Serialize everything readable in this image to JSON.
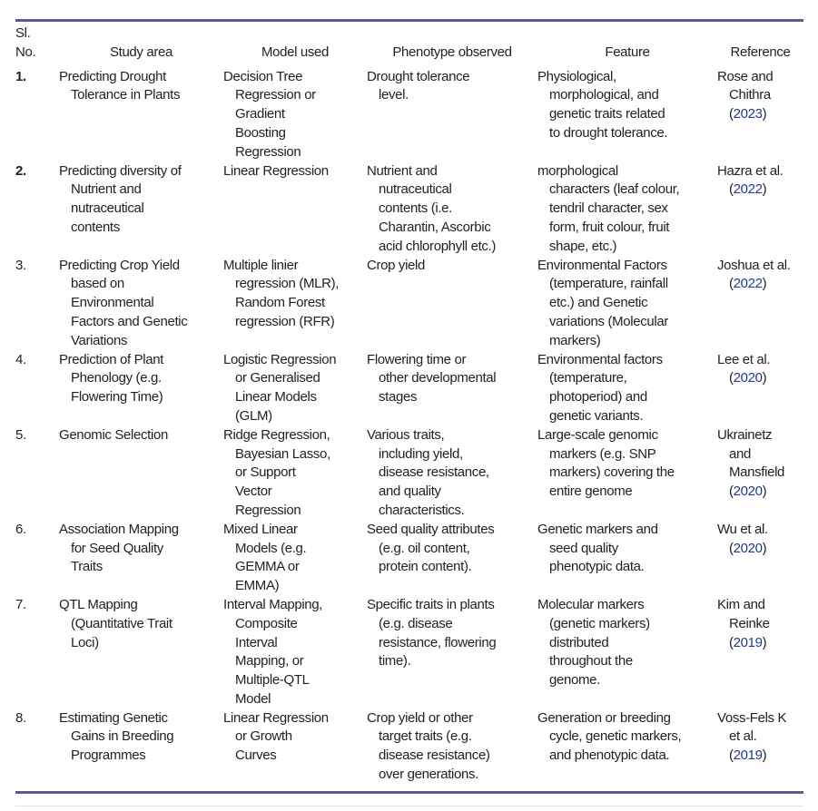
{
  "headers": [
    "Sl.\nNo.",
    "Study area",
    "Model used",
    "Phenotype observed",
    "Feature",
    "Reference"
  ],
  "rows": [
    {
      "no": "1.",
      "bold": true,
      "study": "Predicting Drought\nTolerance in Plants",
      "model": "Decision Tree\nRegression or\nGradient\nBoosting\nRegression",
      "phenotype": "Drought tolerance\nlevel.",
      "feature": "Physiological,\nmorphological, and\ngenetic traits related\nto drought tolerance.",
      "ref": "Rose and\nChithra",
      "year": "2023"
    },
    {
      "no": "2.",
      "bold": true,
      "study": "Predicting diversity of\nNutrient and\nnutraceutical\ncontents",
      "model": "Linear Regression",
      "phenotype": "Nutrient and\nnutraceutical\ncontents (i.e.\nCharantin, Ascorbic\nacid chlorophyll etc.)",
      "feature": "morphological\ncharacters (leaf colour,\ntendril character, sex\nform, fruit colour, fruit\nshape, etc.)",
      "ref": "Hazra et al.",
      "year": "2022"
    },
    {
      "no": "3.",
      "bold": false,
      "study": "Predicting Crop Yield\nbased on\nEnvironmental\nFactors and Genetic\nVariations",
      "model": "Multiple linier\nregression (MLR),\nRandom Forest\nregression (RFR)",
      "phenotype": "Crop yield",
      "feature": "Environmental Factors\n(temperature, rainfall\netc.) and Genetic\nvariations (Molecular\nmarkers)",
      "ref": "Joshua et al.",
      "year": "2022"
    },
    {
      "no": "4.",
      "bold": false,
      "study": "Prediction of Plant\nPhenology (e.g.\nFlowering Time)",
      "model": "Logistic Regression\nor Generalised\nLinear Models\n(GLM)",
      "phenotype": "Flowering time or\nother developmental\nstages",
      "feature": "Environmental factors\n(temperature,\nphotoperiod) and\ngenetic variants.",
      "ref": "Lee et al.",
      "year": "2020"
    },
    {
      "no": "5.",
      "bold": false,
      "study": "Genomic Selection",
      "model": "Ridge Regression,\nBayesian Lasso,\nor Support\nVector\nRegression",
      "phenotype": "Various traits,\nincluding yield,\ndisease resistance,\nand quality\ncharacteristics.",
      "feature": "Large-scale genomic\nmarkers (e.g. SNP\nmarkers) covering the\nentire genome",
      "ref": "Ukrainetz\nand\nMansfield",
      "year": "2020"
    },
    {
      "no": "6.",
      "bold": false,
      "study": "Association Mapping\nfor Seed Quality\nTraits",
      "model": "Mixed Linear\nModels (e.g.\nGEMMA or\nEMMA)",
      "phenotype": "Seed quality attributes\n(e.g. oil content,\nprotein content).",
      "feature": "Genetic markers and\nseed quality\nphenotypic data.",
      "ref": "Wu et al.",
      "year": "2020"
    },
    {
      "no": "7.",
      "bold": false,
      "study": "QTL Mapping\n(Quantitative Trait\nLoci)",
      "model": "Interval Mapping,\nComposite\nInterval\nMapping, or\nMultiple-QTL\nModel",
      "phenotype": "Specific traits in plants\n(e.g. disease\nresistance, flowering\ntime).",
      "feature": "Molecular markers\n(genetic markers)\ndistributed\nthroughout the\ngenome.",
      "ref": "Kim and\nReinke",
      "year": "2019"
    },
    {
      "no": "8.",
      "bold": false,
      "study": "Estimating Genetic\nGains in Breeding\nProgrammes",
      "model": "Linear Regression\nor Growth\nCurves",
      "phenotype": "Crop yield or other\ntarget traits (e.g.\ndisease resistance)\nover generations.",
      "feature": "Generation or breeding\ncycle, genetic markers,\nand phenotypic data.",
      "ref": "Voss-Fels K\net al.",
      "year": "2019"
    }
  ]
}
